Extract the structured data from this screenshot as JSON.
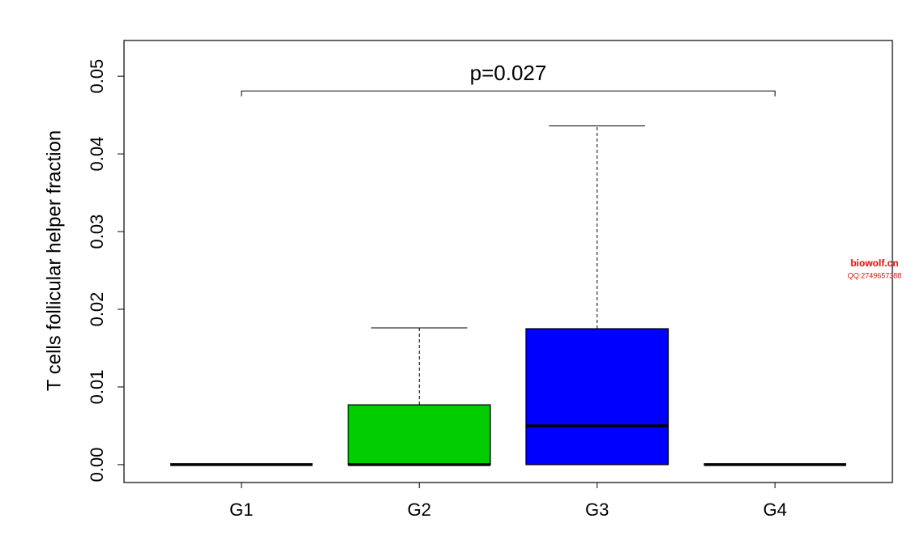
{
  "chart_data": {
    "type": "box",
    "y_label": "T cells follicular helper fraction",
    "categories": [
      "G1",
      "G2",
      "G3",
      "G4"
    ],
    "min": [
      0,
      0,
      0,
      0
    ],
    "q1": [
      0,
      0,
      0,
      0
    ],
    "median": [
      0,
      0,
      0.005,
      0
    ],
    "q3": [
      0,
      0.0077,
      0.0175,
      0
    ],
    "max": [
      0,
      0.0176,
      0.0436,
      0
    ],
    "colors": [
      null,
      "#00cc00",
      "#0000ff",
      null
    ],
    "ylim": [
      -0.0023,
      0.0546
    ],
    "yticks": [
      {
        "value": 0,
        "label": "0.00"
      },
      0.01,
      0.02,
      0.03,
      0.04,
      0.05
    ],
    "significance": {
      "label": "p=0.027",
      "y": 0.0481,
      "tick_end": 0.0474
    },
    "watermark": [
      "biowolf.cn",
      "QQ:2749657388"
    ]
  }
}
